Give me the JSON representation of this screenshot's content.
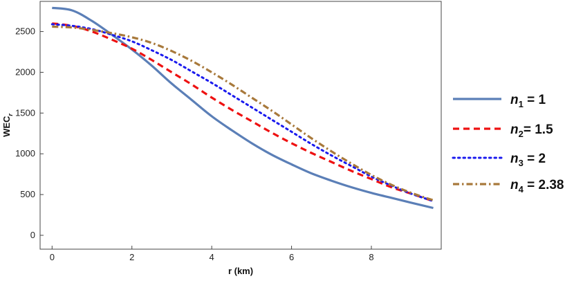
{
  "chart_data": {
    "type": "line",
    "xlabel": "r (km)",
    "ylabel": {
      "main": "WEC",
      "sub": "r"
    },
    "xlim": [
      -0.3,
      9.75
    ],
    "ylim": [
      -170,
      2870
    ],
    "x_ticks": [
      0,
      2,
      4,
      6,
      8
    ],
    "y_ticks": [
      0,
      500,
      1000,
      1500,
      2000,
      2500
    ],
    "grid": false,
    "legend_position": "right",
    "series": [
      {
        "name": {
          "var": "n",
          "sub": "1",
          "rest": " = 1"
        },
        "style": "solid",
        "color": "#5b7fb7",
        "x": [
          0,
          0.5,
          1,
          1.5,
          2,
          2.5,
          3,
          3.5,
          4,
          4.5,
          5,
          5.5,
          6,
          6.5,
          7,
          7.5,
          8,
          8.5,
          9,
          9.55
        ],
        "y": [
          2790,
          2760,
          2630,
          2460,
          2280,
          2080,
          1860,
          1660,
          1460,
          1290,
          1130,
          990,
          870,
          760,
          670,
          590,
          520,
          460,
          400,
          335
        ]
      },
      {
        "name": {
          "var": "n",
          "sub": "2",
          "rest": "= 1.5"
        },
        "style": "dashed",
        "color": "#ee1111",
        "x": [
          0,
          0.5,
          1,
          1.5,
          2,
          2.5,
          3,
          3.5,
          4,
          4.5,
          5,
          5.5,
          6,
          6.5,
          7,
          7.5,
          8,
          8.5,
          9,
          9.55
        ],
        "y": [
          2600,
          2570,
          2500,
          2400,
          2290,
          2150,
          2000,
          1850,
          1690,
          1540,
          1400,
          1260,
          1130,
          1010,
          900,
          790,
          690,
          590,
          510,
          420
        ]
      },
      {
        "name": {
          "var": "n",
          "sub": "3",
          "rest": " = 2"
        },
        "style": "dotted",
        "color": "#1a1aee",
        "x": [
          0,
          0.5,
          1,
          1.5,
          2,
          2.5,
          3,
          3.5,
          4,
          4.5,
          5,
          5.5,
          6,
          6.5,
          7,
          7.5,
          8,
          8.5,
          9,
          9.55
        ],
        "y": [
          2590,
          2570,
          2530,
          2460,
          2380,
          2270,
          2150,
          2010,
          1870,
          1720,
          1570,
          1420,
          1270,
          1120,
          980,
          850,
          720,
          610,
          510,
          420
        ]
      },
      {
        "name": {
          "var": "n",
          "sub": "4",
          "rest": " = 2.38"
        },
        "style": "dashdot",
        "color": "#a8793b",
        "x": [
          0,
          0.5,
          1,
          1.5,
          2,
          2.5,
          3,
          3.5,
          4,
          4.5,
          5,
          5.5,
          6,
          6.5,
          7,
          7.5,
          8,
          8.5,
          9,
          9.55
        ],
        "y": [
          2560,
          2550,
          2520,
          2480,
          2430,
          2360,
          2260,
          2140,
          2000,
          1850,
          1690,
          1530,
          1360,
          1190,
          1030,
          880,
          740,
          620,
          520,
          430
        ]
      }
    ]
  }
}
